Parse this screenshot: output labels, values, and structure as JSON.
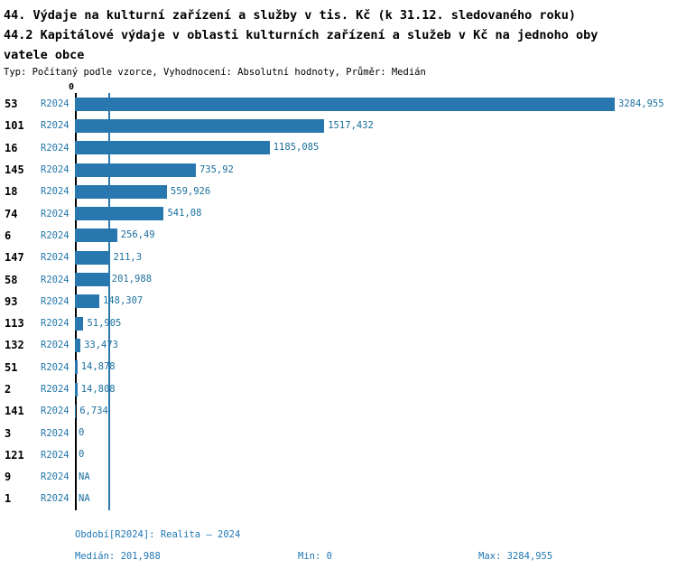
{
  "header": {
    "title_line1": "44. Výdaje na kulturní zařízení a služby v tis. Kč (k 31.12. sledovaného roku)",
    "title_line2": "44.2 Kapitálové výdaje v oblasti kulturních zařízení a služeb v Kč na jednoho oby",
    "title_line3": "vatele obce",
    "subtitle": "Typ: Počítaný podle vzorce, Vyhodnocení: Absolutní hodnoty, Průměr: Medián"
  },
  "chart_data": {
    "type": "bar",
    "orientation": "horizontal",
    "zero_label": "0",
    "period_label": "R2024",
    "categories": [
      "53",
      "101",
      "16",
      "145",
      "18",
      "74",
      "6",
      "147",
      "58",
      "93",
      "113",
      "132",
      "51",
      "2",
      "141",
      "3",
      "121",
      "9",
      "1"
    ],
    "values": [
      3284.955,
      1517.432,
      1185.085,
      735.92,
      559.926,
      541.08,
      256.49,
      211.3,
      201.988,
      148.307,
      51.905,
      33.473,
      14.878,
      14.808,
      6.734,
      0,
      0,
      null,
      null
    ],
    "value_labels": [
      "3284,955",
      "1517,432",
      "1185,085",
      "735,92",
      "559,926",
      "541,08",
      "256,49",
      "211,3",
      "201,988",
      "148,307",
      "51,905",
      "33,473",
      "14,878",
      "14,808",
      "6,734",
      "0",
      "0",
      "NA",
      "NA"
    ],
    "xlim": [
      0,
      3284.955
    ],
    "median": 201.988,
    "bar_color": "#2878af",
    "grid": false,
    "legend_position": "none",
    "title": "44. Výdaje na kulturní zařízení a služby v tis. Kč (k 31.12. sledovaného roku)",
    "xlabel": "",
    "ylabel": ""
  },
  "footer": {
    "period": "Období[R2024]: Realita – 2024",
    "median": "Medián: 201,988",
    "min": "Min: 0",
    "max": "Max: 3284,955"
  },
  "colors": {
    "bar": "#2878af",
    "median_line": "#2878af",
    "axis": "#000000",
    "period_text": "#2277aa",
    "value_text": "#1a6f9e",
    "footer_text": "#1f77b4"
  }
}
